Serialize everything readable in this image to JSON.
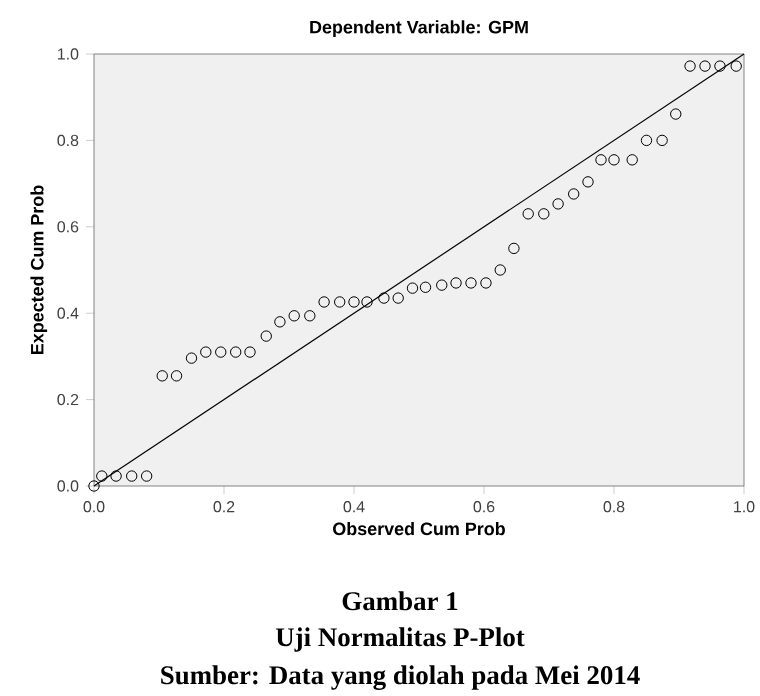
{
  "chart_data": {
    "type": "scatter",
    "title": "Dependent Variable: GPM",
    "xlabel": "Observed Cum Prob",
    "ylabel": "Expected Cum Prob",
    "annotations": [
      "Gambar 1",
      "Uji Normalitas P-Plot",
      "Sumber: Data yang diolah pada Mei 2014"
    ],
    "xlim": [
      0,
      1
    ],
    "ylim": [
      0,
      1
    ],
    "xticks": [
      {
        "value": 0,
        "label": "0.0"
      },
      {
        "value": 0.2,
        "label": "0.2"
      },
      {
        "value": 0.4,
        "label": "0.4"
      },
      {
        "value": 0.6,
        "label": "0.6"
      },
      {
        "value": 0.8,
        "label": "0.8"
      },
      {
        "value": 1,
        "label": "1.0"
      }
    ],
    "yticks": [
      {
        "value": 0,
        "label": "0.0"
      },
      {
        "value": 0.2,
        "label": "0.2"
      },
      {
        "value": 0.4,
        "label": "0.4"
      },
      {
        "value": 0.6,
        "label": "0.6"
      },
      {
        "value": 0.8,
        "label": "0.8"
      },
      {
        "value": 1,
        "label": "1.0"
      }
    ],
    "marker": "circle",
    "grid": false,
    "series": [
      {
        "color": "#000000",
        "x": [
          0.0,
          0.012,
          0.034,
          0.058,
          0.081,
          0.105,
          0.127,
          0.15,
          0.172,
          0.195,
          0.218,
          0.24,
          0.265,
          0.286,
          0.308,
          0.332,
          0.354,
          0.378,
          0.4,
          0.42,
          0.446,
          0.468,
          0.49,
          0.51,
          0.535,
          0.557,
          0.58,
          0.603,
          0.625,
          0.646,
          0.668,
          0.692,
          0.714,
          0.738,
          0.76,
          0.78,
          0.8,
          0.828,
          0.85,
          0.874,
          0.895,
          0.917,
          0.94,
          0.963,
          0.988
        ],
        "values": [
          0.0,
          0.023,
          0.023,
          0.023,
          0.023,
          0.255,
          0.255,
          0.296,
          0.31,
          0.31,
          0.31,
          0.31,
          0.347,
          0.38,
          0.394,
          0.394,
          0.426,
          0.426,
          0.426,
          0.426,
          0.435,
          0.435,
          0.458,
          0.46,
          0.465,
          0.47,
          0.47,
          0.47,
          0.5,
          0.55,
          0.63,
          0.63,
          0.653,
          0.676,
          0.704,
          0.755,
          0.755,
          0.755,
          0.8,
          0.8,
          0.861,
          0.972,
          0.972,
          0.972,
          0.972
        ]
      },
      {
        "type": "line",
        "marker": "none",
        "color": "#000000",
        "x": [
          0,
          1
        ],
        "values": [
          0,
          1
        ]
      }
    ]
  }
}
